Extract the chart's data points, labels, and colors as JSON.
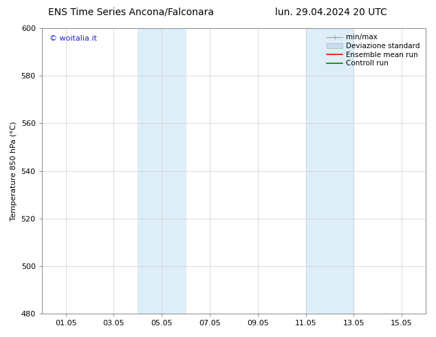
{
  "title_left": "ENS Time Series Ancona/Falconara",
  "title_right": "lun. 29.04.2024 20 UTC",
  "ylabel": "Temperature 850 hPa (°C)",
  "ylim": [
    480,
    600
  ],
  "yticks": [
    480,
    500,
    520,
    540,
    560,
    580,
    600
  ],
  "xtick_labels": [
    "01.05",
    "03.05",
    "05.05",
    "07.05",
    "09.05",
    "11.05",
    "13.05",
    "15.05"
  ],
  "xtick_positions": [
    1,
    3,
    5,
    7,
    9,
    11,
    13,
    15
  ],
  "xlim": [
    0,
    16
  ],
  "shaded_bands": [
    {
      "x_start": 4,
      "x_end": 6,
      "color": "#ddeef8"
    },
    {
      "x_start": 11,
      "x_end": 13,
      "color": "#ddeef8"
    }
  ],
  "watermark_text": "© woitalia.it",
  "watermark_color": "#2222cc",
  "legend_labels": [
    "min/max",
    "Deviazione standard",
    "Ensemble mean run",
    "Controll run"
  ],
  "legend_minmax_color": "#aaaaaa",
  "legend_dev_color": "#c8ddf0",
  "legend_ens_color": "red",
  "legend_ctrl_color": "green",
  "bg_color": "#ffffff",
  "plot_bg_color": "#ffffff",
  "grid_color": "#cccccc",
  "spine_color": "#888888",
  "title_fontsize": 10,
  "ylabel_fontsize": 8,
  "tick_fontsize": 8,
  "legend_fontsize": 7.5,
  "watermark_fontsize": 8
}
